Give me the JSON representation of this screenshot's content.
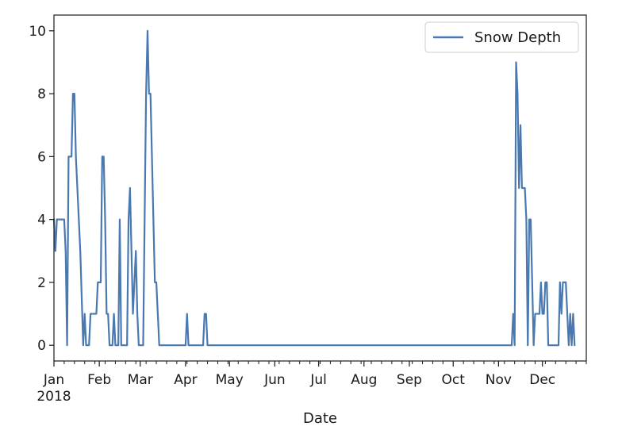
{
  "chart_data": {
    "type": "line",
    "xlabel": "Date",
    "ylabel": "",
    "year_label": "2018",
    "xlim": [
      "2018-01-01",
      "2018-12-31"
    ],
    "ylim": [
      -0.5,
      10.5
    ],
    "yticks": [
      0,
      2,
      4,
      6,
      8,
      10
    ],
    "xticks": [
      {
        "date": "2018-01-01",
        "label": "Jan"
      },
      {
        "date": "2018-02-01",
        "label": "Feb"
      },
      {
        "date": "2018-03-01",
        "label": "Mar"
      },
      {
        "date": "2018-04-01",
        "label": "Apr"
      },
      {
        "date": "2018-05-01",
        "label": "May"
      },
      {
        "date": "2018-06-01",
        "label": "Jun"
      },
      {
        "date": "2018-07-01",
        "label": "Jul"
      },
      {
        "date": "2018-08-01",
        "label": "Aug"
      },
      {
        "date": "2018-09-01",
        "label": "Sep"
      },
      {
        "date": "2018-10-01",
        "label": "Oct"
      },
      {
        "date": "2018-11-01",
        "label": "Nov"
      },
      {
        "date": "2018-12-01",
        "label": "Dec"
      }
    ],
    "grid": false,
    "legend_position": "top-right",
    "series": [
      {
        "name": "Snow Depth",
        "color": "#4a78b0",
        "points": [
          [
            "2018-01-01",
            4
          ],
          [
            "2018-01-02",
            3
          ],
          [
            "2018-01-03",
            4
          ],
          [
            "2018-01-04",
            4
          ],
          [
            "2018-01-05",
            4
          ],
          [
            "2018-01-07",
            4
          ],
          [
            "2018-01-08",
            4
          ],
          [
            "2018-01-09",
            3
          ],
          [
            "2018-01-10",
            0
          ],
          [
            "2018-01-11",
            6
          ],
          [
            "2018-01-12",
            6
          ],
          [
            "2018-01-13",
            6
          ],
          [
            "2018-01-14",
            8
          ],
          [
            "2018-01-15",
            8
          ],
          [
            "2018-01-16",
            6
          ],
          [
            "2018-01-18",
            4
          ],
          [
            "2018-01-19",
            3
          ],
          [
            "2018-01-21",
            0
          ],
          [
            "2018-01-22",
            1
          ],
          [
            "2018-01-23",
            0
          ],
          [
            "2018-01-25",
            0
          ],
          [
            "2018-01-26",
            1
          ],
          [
            "2018-01-27",
            1
          ],
          [
            "2018-01-30",
            1
          ],
          [
            "2018-01-31",
            2
          ],
          [
            "2018-02-02",
            2
          ],
          [
            "2018-02-03",
            6
          ],
          [
            "2018-02-04",
            6
          ],
          [
            "2018-02-05",
            4
          ],
          [
            "2018-02-06",
            1
          ],
          [
            "2018-02-07",
            1
          ],
          [
            "2018-02-08",
            0
          ],
          [
            "2018-02-10",
            0
          ],
          [
            "2018-02-11",
            1
          ],
          [
            "2018-02-12",
            0
          ],
          [
            "2018-02-14",
            0
          ],
          [
            "2018-02-15",
            4
          ],
          [
            "2018-02-16",
            0
          ],
          [
            "2018-02-20",
            0
          ],
          [
            "2018-02-21",
            4
          ],
          [
            "2018-02-22",
            5
          ],
          [
            "2018-02-23",
            3
          ],
          [
            "2018-02-24",
            1
          ],
          [
            "2018-02-25",
            2
          ],
          [
            "2018-02-26",
            3
          ],
          [
            "2018-02-27",
            1
          ],
          [
            "2018-02-28",
            0
          ],
          [
            "2018-03-03",
            0
          ],
          [
            "2018-03-05",
            8
          ],
          [
            "2018-03-06",
            10
          ],
          [
            "2018-03-07",
            8
          ],
          [
            "2018-03-08",
            8
          ],
          [
            "2018-03-10",
            4
          ],
          [
            "2018-03-11",
            2
          ],
          [
            "2018-03-12",
            2
          ],
          [
            "2018-03-13",
            1
          ],
          [
            "2018-03-14",
            0
          ],
          [
            "2018-04-01",
            0
          ],
          [
            "2018-04-02",
            1
          ],
          [
            "2018-04-03",
            0
          ],
          [
            "2018-04-13",
            0
          ],
          [
            "2018-04-14",
            1
          ],
          [
            "2018-04-15",
            1
          ],
          [
            "2018-04-16",
            0
          ],
          [
            "2018-11-10",
            0
          ],
          [
            "2018-11-11",
            1
          ],
          [
            "2018-11-12",
            0
          ],
          [
            "2018-11-13",
            9
          ],
          [
            "2018-11-14",
            8
          ],
          [
            "2018-11-15",
            5
          ],
          [
            "2018-11-16",
            7
          ],
          [
            "2018-11-17",
            5
          ],
          [
            "2018-11-19",
            5
          ],
          [
            "2018-11-20",
            4
          ],
          [
            "2018-11-21",
            0
          ],
          [
            "2018-11-22",
            4
          ],
          [
            "2018-11-23",
            4
          ],
          [
            "2018-11-24",
            2
          ],
          [
            "2018-11-25",
            0
          ],
          [
            "2018-11-26",
            1
          ],
          [
            "2018-11-27",
            1
          ],
          [
            "2018-11-29",
            1
          ],
          [
            "2018-11-30",
            2
          ],
          [
            "2018-12-01",
            1
          ],
          [
            "2018-12-02",
            1
          ],
          [
            "2018-12-03",
            2
          ],
          [
            "2018-12-04",
            2
          ],
          [
            "2018-12-05",
            0
          ],
          [
            "2018-12-12",
            0
          ],
          [
            "2018-12-13",
            2
          ],
          [
            "2018-12-14",
            1
          ],
          [
            "2018-12-15",
            2
          ],
          [
            "2018-12-16",
            2
          ],
          [
            "2018-12-17",
            2
          ],
          [
            "2018-12-18",
            1
          ],
          [
            "2018-12-19",
            0
          ],
          [
            "2018-12-20",
            1
          ],
          [
            "2018-12-21",
            0
          ],
          [
            "2018-12-22",
            1
          ],
          [
            "2018-12-23",
            0
          ]
        ]
      }
    ]
  }
}
